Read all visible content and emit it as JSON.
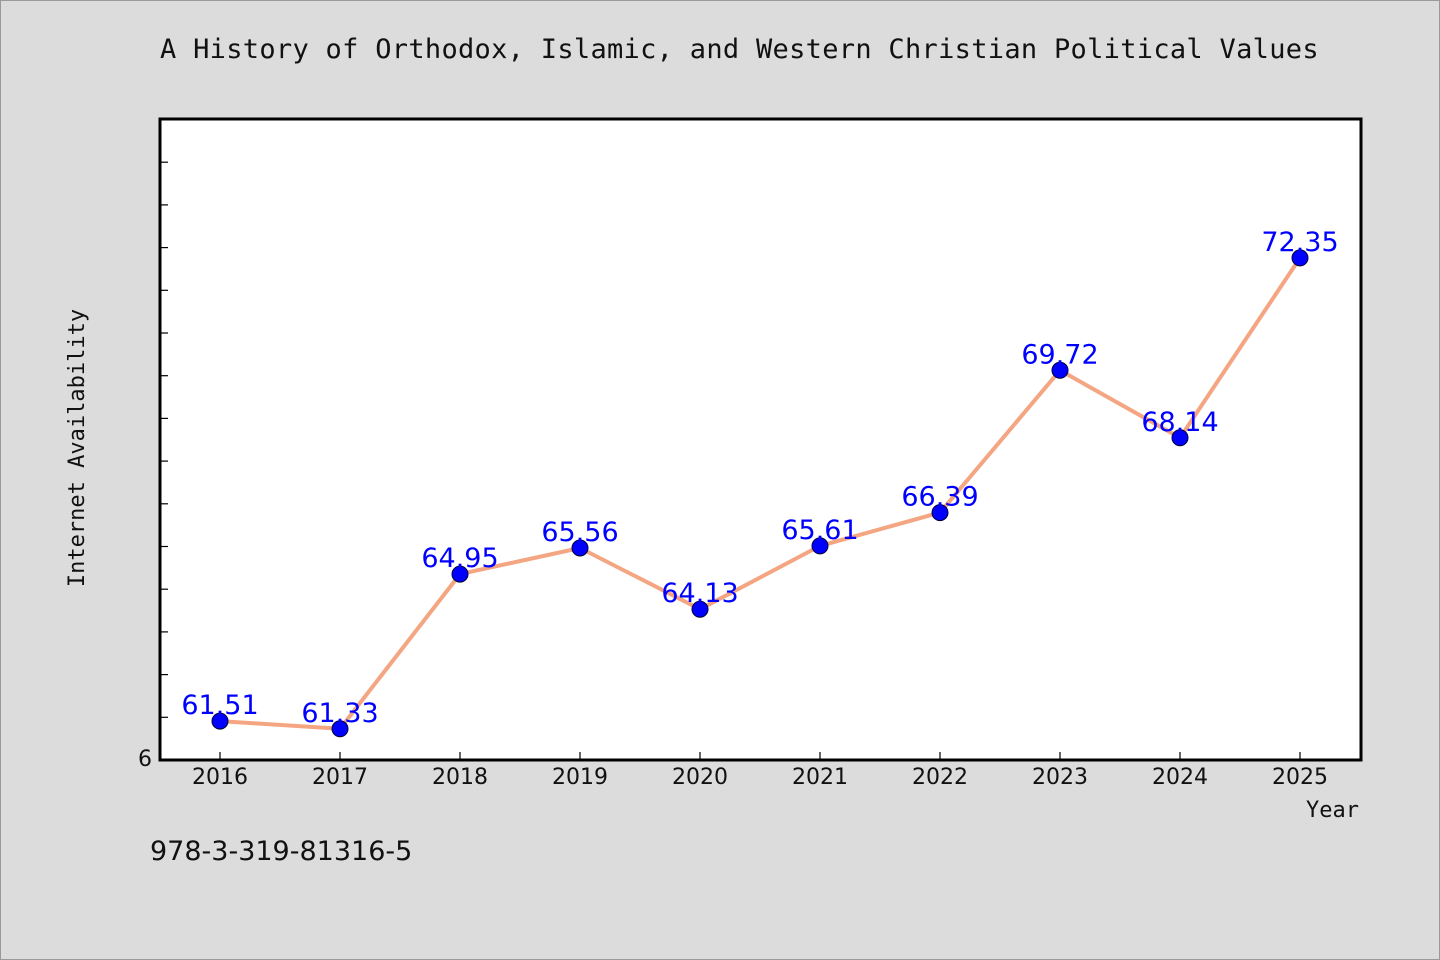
{
  "title": "A History of Orthodox, Islamic, and Western Christian Political Values",
  "footer_text": "978-3-319-81316-5",
  "colors": {
    "background": "#dcdcdc",
    "plot_background": "#ffffff",
    "line": "#f4a582",
    "marker": "#0000ff",
    "data_label": "#0000ff"
  },
  "chart_data": {
    "type": "line",
    "title": "A History of Orthodox, Islamic, and Western Christian Political Values",
    "xlabel": "Year",
    "ylabel": "Internet Availability",
    "x": [
      "2016",
      "2017",
      "2018",
      "2019",
      "2020",
      "2021",
      "2022",
      "2023",
      "2024",
      "2025"
    ],
    "series": [
      {
        "values": [
          61.51,
          61.33,
          64.95,
          65.56,
          64.13,
          65.61,
          66.39,
          69.72,
          68.14,
          72.35
        ]
      }
    ],
    "data_labels": [
      "61.51",
      "61.33",
      "64.95",
      "65.56",
      "64.13",
      "65.61",
      "66.39",
      "69.72",
      "68.14",
      "72.35"
    ],
    "ylim": [
      60.6,
      75.6
    ],
    "y_tick_labels": [
      "6"
    ],
    "grid": false,
    "legend": "none",
    "markers": "filled-circle"
  }
}
